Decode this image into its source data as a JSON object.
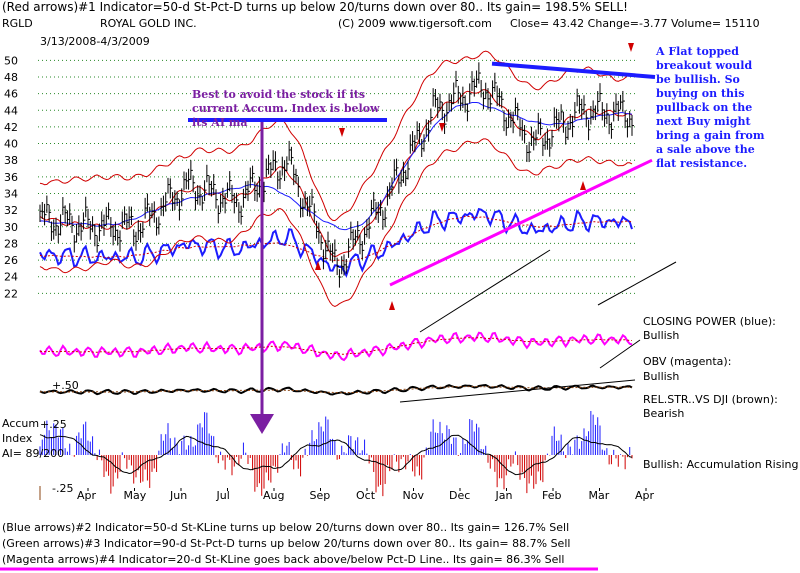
{
  "header": {
    "line1": "(Red arrows)#1 Indicator=50-d St-Pct-D turns up below 20/turns down over 80.. Its gain= 198.5% SELL!",
    "ticker": "RGLD",
    "company": "ROYAL GOLD INC.",
    "copyright": "(C) 2009 www.tigersoft.com",
    "quote": "Close=   43.42  Change=-3.77 Volume=  15110",
    "date_range": "3/13/2008-4/3/2009"
  },
  "annotations": {
    "purple_note": "Best to avoid the stock if its current Accum. Index is below its AI ma",
    "blue_note": "A Flat topped breakout would be bullish.  So buying on this pullback on the next Buy might bring a gain from a sale above the flat resistance."
  },
  "indicator_labels": {
    "closing_power": "CLOSING POWER (blue):",
    "closing_power_state": "Bullish",
    "obv": "OBV (magenta):",
    "obv_state": "Bullish",
    "rel_str": "REL.STR..VS DJI (brown):",
    "rel_str_state": "Bearish",
    "accum_rising": "Bullish: Accumulation Rising",
    "rel_level": "+.50",
    "accum_title": "Accum",
    "accum_index": "Index",
    "accum_ai": "AI= 89/200",
    "accum_plus": "+.25",
    "accum_minus": "-.25"
  },
  "footer": {
    "line1": "(Blue arrows)#2 Indicator=50-d St-KLine turns up below 20/turns down over 80.. Its gain= 126.7% Sell",
    "line2": "(Green arrows)#3 Indicator=90-d St-Pct-D turns up below 20/turns down over 80.. Its gain= 88.7% Sell",
    "line3": "(Magenta arrows)#4 Indicator=20-d St-KLine goes back above/below Pct-D Line.. Its gain= 86.3% Sell"
  },
  "colors": {
    "price": "#000000",
    "bands": "#d00000",
    "ma": "#1c1cff",
    "closing_power": "#1c1cff",
    "obv": "#ff00ff",
    "rel_str": "#8b4513",
    "accum_pos": "#1c1cff",
    "accum_neg": "#d00000",
    "purple": "#7b1fa2",
    "magenta": "#ff00ff",
    "blue_line": "#1c1cff"
  },
  "chart_data": {
    "type": "line",
    "x_ticks": [
      "Apr",
      "May",
      "Jun",
      "Jul",
      "Aug",
      "Sep",
      "Oct",
      "Nov",
      "Dec",
      "Jan",
      "Feb",
      "Mar",
      "Apr"
    ],
    "y_ticks": [
      50,
      48,
      46,
      44,
      42,
      40,
      38,
      36,
      34,
      32,
      30,
      28,
      26,
      24,
      22
    ],
    "ylim": [
      20,
      51
    ],
    "grid": true,
    "price_close_monthly": [
      {
        "x": "Apr",
        "y": 31
      },
      {
        "x": "May",
        "y": 30
      },
      {
        "x": "Jun",
        "y": 30
      },
      {
        "x": "Jul",
        "y": 35
      },
      {
        "x": "Aug",
        "y": 33
      },
      {
        "x": "Sep",
        "y": 38
      },
      {
        "x": "Oct",
        "y": 25
      },
      {
        "x": "Nov",
        "y": 33
      },
      {
        "x": "Dec",
        "y": 44
      },
      {
        "x": "Jan",
        "y": 47
      },
      {
        "x": "Feb",
        "y": 40
      },
      {
        "x": "Mar",
        "y": 44
      },
      {
        "x": "Apr",
        "y": 43.42
      }
    ],
    "resistance_line": {
      "from": {
        "x": "Dec",
        "y": 49.6
      },
      "to": {
        "x": "Apr",
        "y": 48
      }
    },
    "support_line": {
      "from": {
        "x": "Oct",
        "y": 23
      },
      "to": {
        "x": "Apr",
        "y": 38
      }
    }
  }
}
